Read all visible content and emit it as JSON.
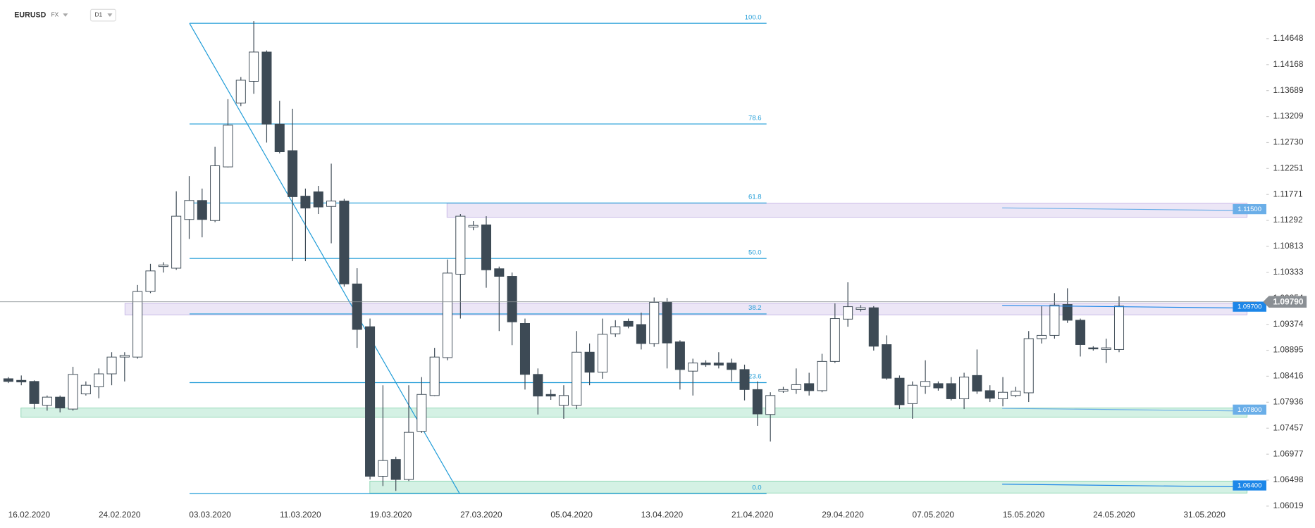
{
  "header": {
    "symbol": "EURUSD",
    "market": "FX",
    "interval": "D1"
  },
  "chart_data": {
    "type": "candlestick",
    "categories": [
      null,
      null,
      "16.02.2020",
      null,
      null,
      null,
      null,
      null,
      null,
      "24.02.2020",
      null,
      null,
      null,
      null,
      null,
      null,
      "03.03.2020",
      null,
      null,
      null,
      null,
      null,
      null,
      "11.03.2020",
      null,
      null,
      null,
      null,
      null,
      null,
      "19.03.2020",
      null,
      null,
      null,
      null,
      null,
      null,
      "27.03.2020",
      null,
      null,
      null,
      null,
      null,
      null,
      "05.04.2020",
      null,
      null,
      null,
      null,
      null,
      null,
      "13.04.2020",
      null,
      null,
      null,
      null,
      null,
      null,
      "21.04.2020",
      null,
      null,
      null,
      null,
      null,
      null,
      "29.04.2020",
      null,
      null,
      null,
      null,
      null,
      null,
      "07.05.2020",
      null,
      null,
      null,
      null,
      null,
      null,
      "15.05.2020",
      null,
      null,
      null,
      null,
      null,
      null,
      "24.05.2020",
      null,
      null,
      null,
      null,
      null,
      null,
      "31.05.2020"
    ],
    "open": [
      1.0837,
      1.0834,
      1.0832,
      1.0788,
      1.0803,
      1.0781,
      1.0809,
      1.0822,
      1.0846,
      1.0877,
      1.0877,
      1.0998,
      1.1044,
      1.1041,
      1.1131,
      1.1166,
      1.1129,
      1.1228,
      1.1346,
      1.1386,
      1.144,
      1.1307,
      1.1258,
      1.1174,
      1.1182,
      1.1155,
      1.1165,
      1.1012,
      1.0933,
      1.0657,
      1.0688,
      1.0651,
      1.074,
      1.0806,
      1.0876,
      1.103,
      1.1117,
      1.1121,
      1.104,
      1.1026,
      1.0939,
      1.0845,
      1.0808,
      1.0788,
      1.0788,
      1.0886,
      1.0849,
      1.092,
      1.0943,
      1.0937,
      1.0902,
      1.0978,
      1.0905,
      1.0851,
      1.0866,
      1.0866,
      1.0866,
      1.0854,
      1.0817,
      1.0771,
      1.0814,
      1.0817,
      1.0828,
      1.0815,
      1.0869,
      1.0947,
      1.0965,
      1.0968,
      1.09,
      1.0838,
      1.0791,
      1.0823,
      1.0828,
      1.0828,
      1.08,
      1.0843,
      1.0815,
      1.08,
      1.0806,
      1.0811,
      1.0911,
      1.0917,
      1.0974,
      1.0945,
      1.0894,
      1.0891,
      1.0891,
      null,
      null,
      null,
      null,
      null,
      null,
      null
    ],
    "high": [
      1.084,
      1.0843,
      1.0834,
      1.0806,
      1.0806,
      1.0859,
      1.0832,
      1.0856,
      1.0886,
      1.0886,
      1.101,
      1.1049,
      1.1052,
      1.1183,
      1.1211,
      1.1188,
      1.1265,
      1.1353,
      1.1394,
      1.1497,
      1.1443,
      1.135,
      1.1335,
      1.1188,
      1.1193,
      1.1234,
      1.1169,
      1.1041,
      1.0948,
      1.0825,
      1.0693,
      1.0825,
      1.084,
      1.0894,
      1.1057,
      1.1141,
      1.1128,
      1.1137,
      1.1044,
      1.1033,
      1.0948,
      1.0856,
      1.0817,
      1.0825,
      1.0925,
      1.0902,
      1.0948,
      1.0945,
      1.0948,
      1.0959,
      1.0987,
      1.0986,
      1.0908,
      1.0874,
      1.0871,
      1.0886,
      1.0874,
      1.0863,
      1.0832,
      1.0812,
      1.0822,
      1.0856,
      1.0848,
      1.0883,
      1.0976,
      1.1015,
      1.0973,
      1.0971,
      1.0917,
      1.0843,
      1.0832,
      1.0871,
      1.0832,
      1.084,
      1.0848,
      1.0891,
      1.0825,
      1.084,
      1.0822,
      1.0925,
      1.0971,
      1.0995,
      1.1004,
      1.0948,
      1.0897,
      1.0911,
      1.0989,
      null,
      null,
      null,
      null,
      null,
      null,
      null
    ],
    "low": [
      1.0829,
      1.0825,
      1.0781,
      1.0778,
      1.0775,
      1.0778,
      1.0806,
      1.0801,
      1.0825,
      1.0832,
      1.0874,
      1.0995,
      1.1033,
      1.1038,
      1.1095,
      1.1098,
      1.1126,
      1.1227,
      1.134,
      1.1363,
      1.1273,
      1.1253,
      1.1054,
      1.1054,
      1.1141,
      1.1087,
      1.1007,
      1.0894,
      1.0651,
      1.0639,
      1.063,
      1.0648,
      1.0737,
      1.0805,
      1.0871,
      1.0948,
      1.1111,
      1.1005,
      1.0925,
      1.0899,
      1.0817,
      1.0771,
      1.0798,
      1.0763,
      1.0781,
      1.0825,
      1.0837,
      1.0914,
      1.093,
      1.0891,
      1.0896,
      1.0856,
      1.0817,
      1.0806,
      1.0859,
      1.0856,
      1.0832,
      1.0797,
      1.075,
      1.0721,
      1.0811,
      1.0809,
      1.0806,
      1.0812,
      1.0866,
      1.0933,
      1.0961,
      1.0889,
      1.0835,
      1.0781,
      1.0763,
      1.0809,
      1.0815,
      1.0797,
      1.0781,
      1.0809,
      1.0794,
      1.0786,
      1.0803,
      1.0794,
      1.0902,
      1.0911,
      1.094,
      1.0878,
      1.0889,
      1.0866,
      1.0886,
      null,
      null,
      null,
      null,
      null,
      null,
      null
    ],
    "close": [
      1.0832,
      1.0831,
      1.0791,
      1.0803,
      1.0783,
      1.0845,
      1.0825,
      1.0846,
      1.0877,
      1.088,
      1.0998,
      1.1036,
      1.1047,
      1.1137,
      1.1166,
      1.1131,
      1.123,
      1.1305,
      1.1388,
      1.144,
      1.1307,
      1.1256,
      1.1173,
      1.1152,
      1.1154,
      1.1165,
      1.1012,
      1.0928,
      1.0657,
      1.0686,
      1.0651,
      1.0738,
      1.0808,
      1.0877,
      1.1032,
      1.1137,
      1.112,
      1.1038,
      1.1026,
      1.0942,
      1.0845,
      1.0805,
      1.0805,
      1.0806,
      1.0886,
      1.0849,
      1.0919,
      1.0933,
      1.0934,
      1.0902,
      1.0978,
      1.0903,
      1.0854,
      1.0866,
      1.0863,
      1.0862,
      1.0854,
      1.0817,
      1.0772,
      1.0806,
      1.0817,
      1.0826,
      1.0815,
      1.0869,
      1.0948,
      1.097,
      1.0968,
      1.0897,
      1.0838,
      1.0789,
      1.0825,
      1.0832,
      1.082,
      1.08,
      1.084,
      1.0814,
      1.0801,
      1.0812,
      1.0814,
      1.0911,
      1.0917,
      1.0973,
      1.0945,
      1.09,
      1.0892,
      1.0894,
      1.0971,
      null,
      null,
      null,
      null,
      null,
      null,
      null
    ],
    "up_color": "#ffffff",
    "down_color": "#3d4a55",
    "ylim": [
      1.06003,
      1.15359
    ],
    "yticks": [
      1.14648,
      1.14168,
      1.13689,
      1.13209,
      {
        "value": 1.1273,
        "label": "1.12730"
      },
      1.12251,
      1.11771,
      1.11292,
      1.10813,
      1.10333,
      1.09854,
      1.09374,
      1.08895,
      1.08416,
      1.07936,
      1.07457,
      1.06977,
      1.06498,
      1.06019
    ],
    "fibonacci": {
      "high": 1.1493,
      "low": 1.0625,
      "color": "#1e9bd7",
      "levels": [
        {
          "value": 100,
          "label": "100.0"
        },
        {
          "value": 78.6,
          "label": "78.6"
        },
        {
          "value": 61.8,
          "label": "61.8"
        },
        {
          "value": 50,
          "label": "50.0"
        },
        {
          "value": 38.2,
          "label": "38.2"
        },
        {
          "value": 23.6,
          "label": "23.6"
        },
        {
          "value": 0,
          "label": "0.0"
        }
      ]
    },
    "zones": [
      {
        "value": 1.115,
        "label": "1.11500",
        "top": 1.1161,
        "bottom": 1.1135,
        "fill": "#ece6f6",
        "edge": "#c7b8e6",
        "tag": "#6aaee8"
      },
      {
        "value": 1.097,
        "label": "1.09700",
        "top": 1.0976,
        "bottom": 1.0955,
        "fill": "#ece6f6",
        "edge": "#c7b8e6",
        "tag": "#1c86e8"
      },
      {
        "value": 1.078,
        "label": "1.07800",
        "top": 1.0783,
        "bottom": 1.0766,
        "fill": "#d4f1e4",
        "edge": "#8fd6b4",
        "tag": "#6aaee8"
      },
      {
        "value": 1.064,
        "label": "1.06400",
        "top": 1.0648,
        "bottom": 1.0626,
        "fill": "#d4f1e4",
        "edge": "#8fd6b4",
        "tag": "#1c86e8"
      }
    ],
    "last_price": {
      "value": 1.0979,
      "label": "1.09790",
      "color": "#8a8f94"
    }
  }
}
